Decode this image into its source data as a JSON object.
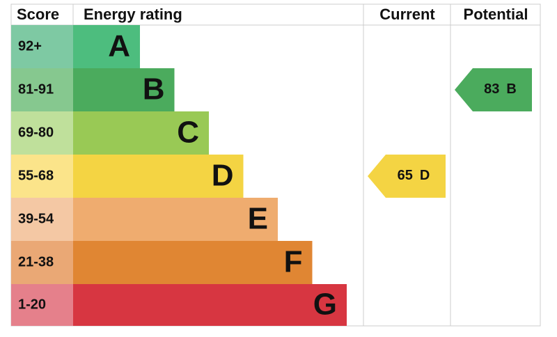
{
  "header": {
    "score": "Score",
    "rating": "Energy rating",
    "current": "Current",
    "potential": "Potential"
  },
  "rows": [
    {
      "score": "92+",
      "letter": "A",
      "color": "#4dbd7e",
      "score_color": "#7ec9a3"
    },
    {
      "score": "81-91",
      "letter": "B",
      "color": "#4bab5d",
      "score_color": "#86c88f"
    },
    {
      "score": "69-80",
      "letter": "C",
      "color": "#99c955",
      "score_color": "#bfe09b"
    },
    {
      "score": "55-68",
      "letter": "D",
      "color": "#f4d443",
      "score_color": "#fbe48a"
    },
    {
      "score": "39-54",
      "letter": "E",
      "color": "#efac6f",
      "score_color": "#f4c8a4"
    },
    {
      "score": "21-38",
      "letter": "F",
      "color": "#e08633",
      "score_color": "#eaa875"
    },
    {
      "score": "1-20",
      "letter": "G",
      "color": "#d73641",
      "score_color": "#e5808b"
    }
  ],
  "current": {
    "value": 65,
    "band": "D",
    "row": 3
  },
  "potential": {
    "value": 83,
    "band": "B",
    "row": 1
  }
}
